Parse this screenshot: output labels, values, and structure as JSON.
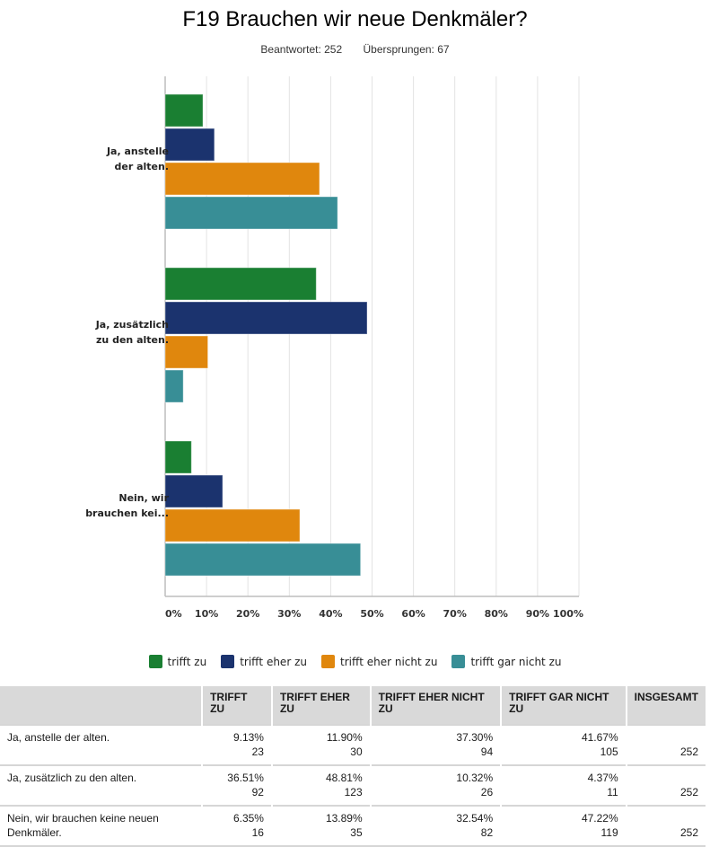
{
  "header": {
    "title": "F19 Brauchen wir neue Denkmäler?",
    "answered": "Beantwortet: 252",
    "skipped": "Übersprungen: 67"
  },
  "chart_data": {
    "type": "bar",
    "orientation": "horizontal",
    "title": "F19 Brauchen wir neue Denkmäler?",
    "categories": [
      "Ja, anstelle der alten.",
      "Ja, zusätzlich zu den alten.",
      "Nein, wir brauchen keine neuen Denkmäler."
    ],
    "category_tick_labels": [
      [
        "Ja, anstelle",
        "der alten."
      ],
      [
        "Ja, zusätzlich",
        "zu den alten."
      ],
      [
        "Nein, wir",
        "brauchen kei..."
      ]
    ],
    "series": [
      {
        "name": "trifft zu",
        "color": "#1a7f32",
        "values": [
          9.13,
          36.51,
          6.35
        ]
      },
      {
        "name": "trifft eher zu",
        "color": "#1b336e",
        "values": [
          11.9,
          48.81,
          13.89
        ]
      },
      {
        "name": "trifft eher nicht zu",
        "color": "#e0870d",
        "values": [
          37.3,
          10.32,
          32.54
        ]
      },
      {
        "name": "trifft gar nicht zu",
        "color": "#388e96",
        "values": [
          41.67,
          4.37,
          47.22
        ]
      }
    ],
    "xlim": [
      0,
      100
    ],
    "xticks": [
      "0%",
      "10%",
      "20%",
      "30%",
      "40%",
      "50%",
      "60%",
      "70%",
      "80%",
      "90%",
      "100%"
    ],
    "xlabel": "",
    "ylabel": "",
    "grid": true,
    "legend_position": "bottom"
  },
  "table": {
    "headers": [
      "",
      "TRIFFT ZU",
      "TRIFFT EHER ZU",
      "TRIFFT EHER NICHT ZU",
      "TRIFFT GAR NICHT ZU",
      "INSGESAMT"
    ],
    "rows": [
      {
        "label": "Ja, anstelle der alten.",
        "cells": [
          [
            "9.13%",
            "23"
          ],
          [
            "11.90%",
            "30"
          ],
          [
            "37.30%",
            "94"
          ],
          [
            "41.67%",
            "105"
          ]
        ],
        "total": "252"
      },
      {
        "label": "Ja, zusätzlich zu den alten.",
        "cells": [
          [
            "36.51%",
            "92"
          ],
          [
            "48.81%",
            "123"
          ],
          [
            "10.32%",
            "26"
          ],
          [
            "4.37%",
            "11"
          ]
        ],
        "total": "252"
      },
      {
        "label": "Nein, wir brauchen keine neuen Denkmäler.",
        "cells": [
          [
            "6.35%",
            "16"
          ],
          [
            "13.89%",
            "35"
          ],
          [
            "32.54%",
            "82"
          ],
          [
            "47.22%",
            "119"
          ]
        ],
        "total": "252"
      }
    ]
  }
}
